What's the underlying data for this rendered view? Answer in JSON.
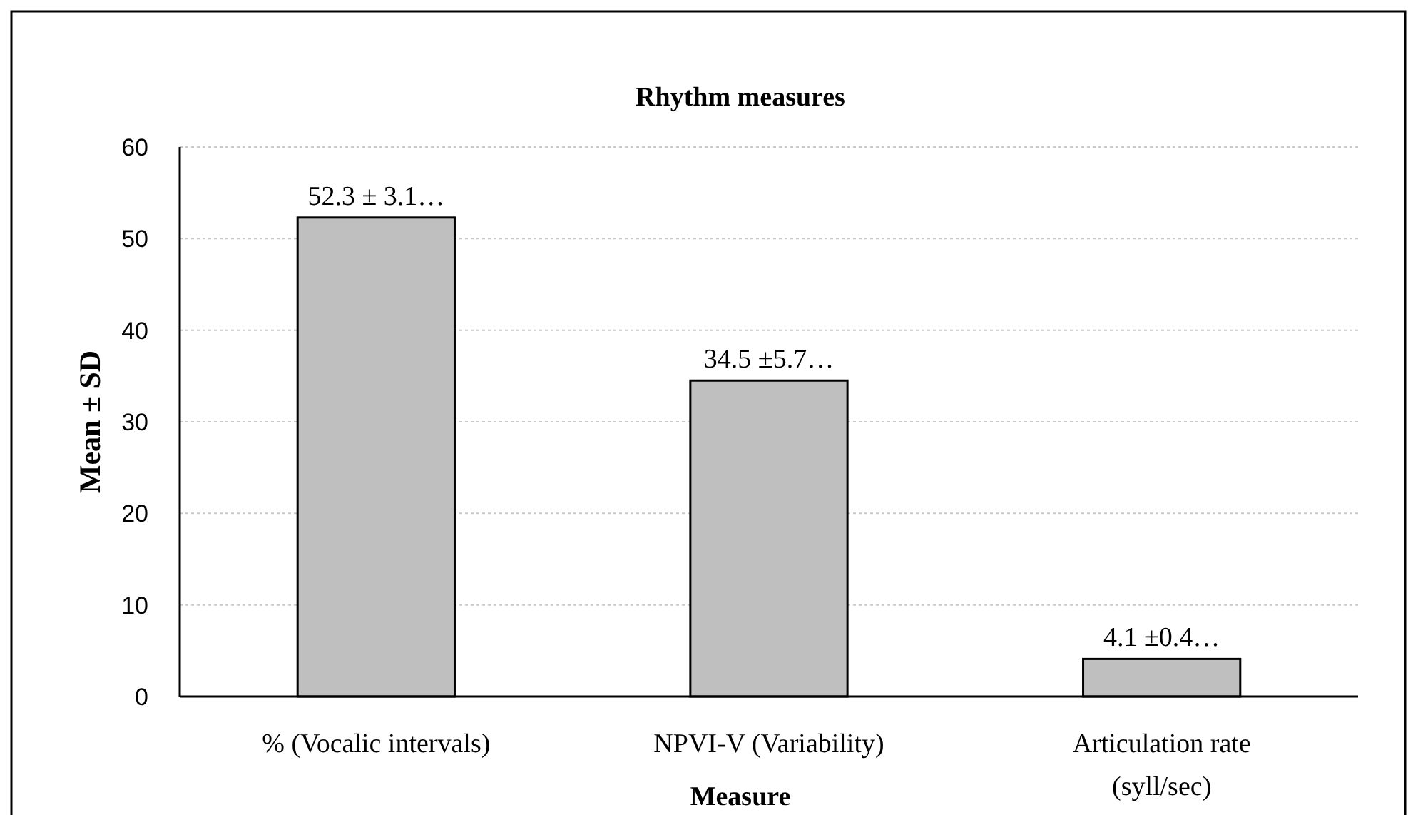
{
  "chart_data": {
    "type": "bar",
    "title": "Rhythm measures",
    "xlabel": "Measure",
    "ylabel": "Mean ± SD",
    "categories": [
      "% (Vocalic intervals)",
      "NPVI-V (Variability)",
      "Articulation rate (syll/sec)"
    ],
    "values": [
      52.3,
      34.5,
      4.1
    ],
    "value_labels": [
      "52.3 ± 3.1…",
      "34.5 ±5.7…",
      "4.1 ±0.4…"
    ],
    "color": "#bfbfbf",
    "ylim": [
      0,
      60
    ],
    "yticks": [
      0,
      10,
      20,
      30,
      40,
      50,
      60
    ],
    "grid": "y"
  }
}
